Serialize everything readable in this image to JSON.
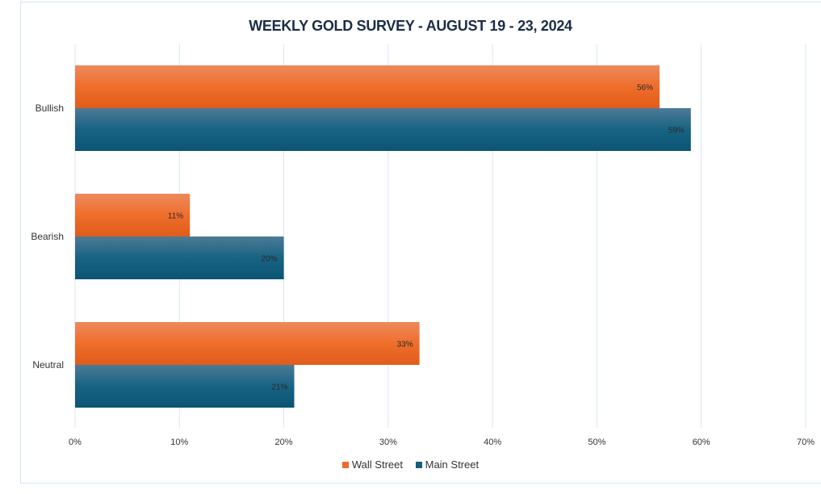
{
  "chart_data": {
    "type": "bar",
    "orientation": "horizontal",
    "title": "WEEKLY GOLD SURVEY - AUGUST 19 - 23, 2024",
    "categories": [
      "Bullish",
      "Bearish",
      "Neutral"
    ],
    "series": [
      {
        "name": "Wall Street",
        "values": [
          56,
          11,
          33
        ],
        "labels": [
          "56%",
          "11%",
          "33%"
        ],
        "color": "#ec6a2a"
      },
      {
        "name": "Main Street",
        "values": [
          59,
          20,
          21
        ],
        "labels": [
          "59%",
          "20%",
          "21%"
        ],
        "color": "#135e7f"
      }
    ],
    "xticks": [
      "0%",
      "10%",
      "20%",
      "30%",
      "40%",
      "50%",
      "60%",
      "70%"
    ],
    "xlim": [
      0,
      70
    ],
    "grid": true,
    "legend": "bottom"
  }
}
